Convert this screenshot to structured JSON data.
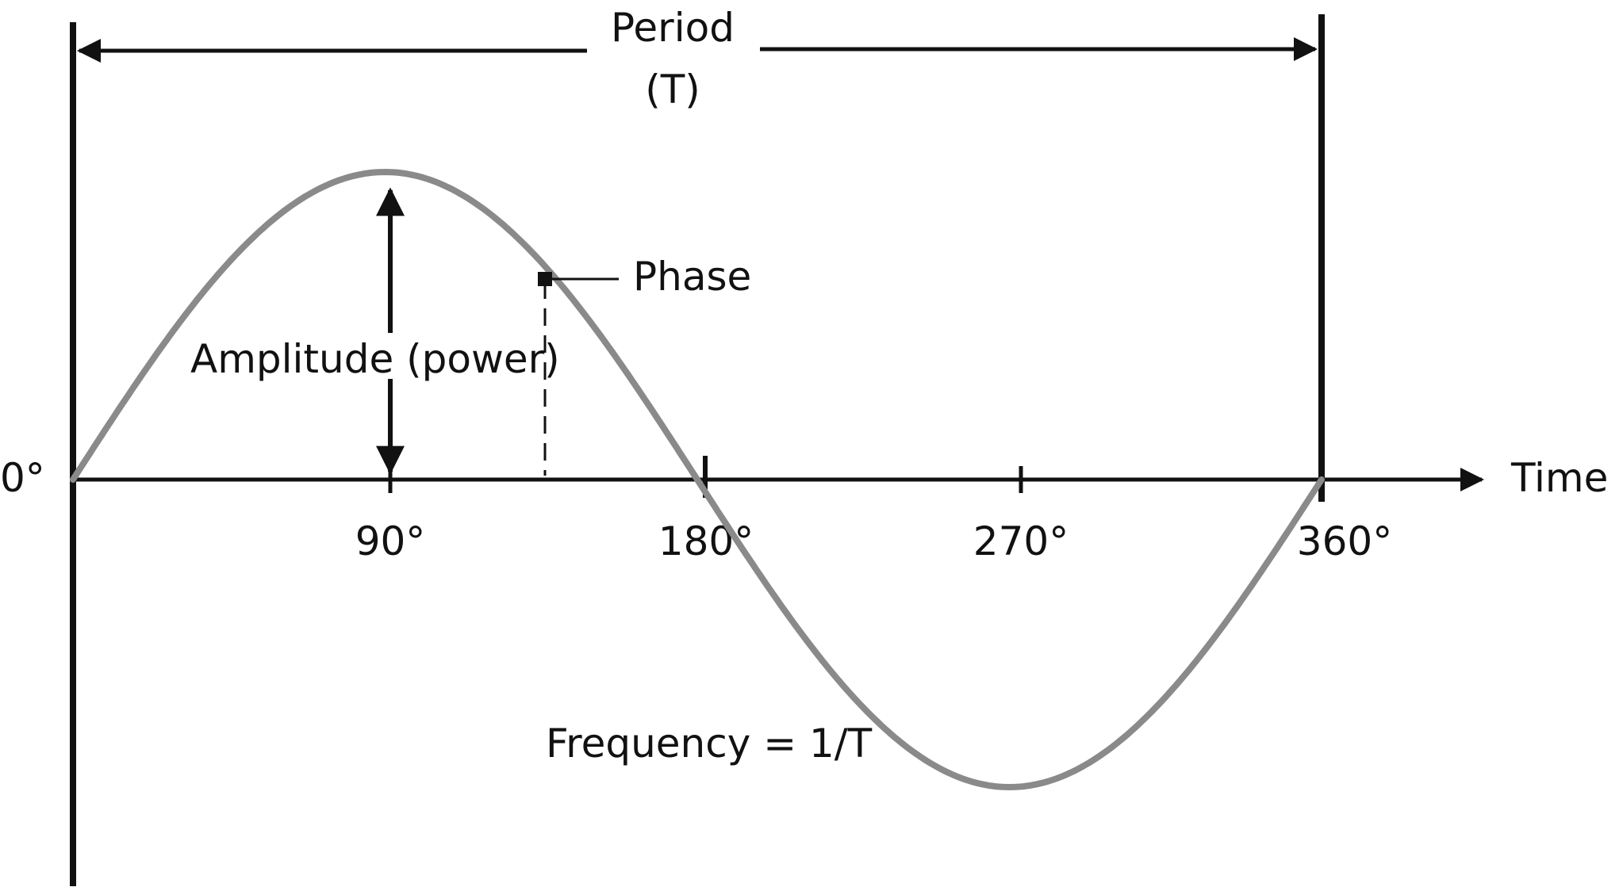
{
  "period": {
    "label_line1": "Period",
    "label_line2": "(T)"
  },
  "phase_label": "Phase",
  "amplitude_label": "Amplitude (power)",
  "frequency_label": "Frequency = 1/T",
  "time_label": "Time",
  "angles": {
    "zero": "0°",
    "ninety": "90°",
    "one_eighty": "180°",
    "two_seventy": "270°",
    "three_sixty": "360°"
  },
  "colors": {
    "wave": "#8a8a8a",
    "lines": "#111111",
    "background": "#ffffff"
  }
}
